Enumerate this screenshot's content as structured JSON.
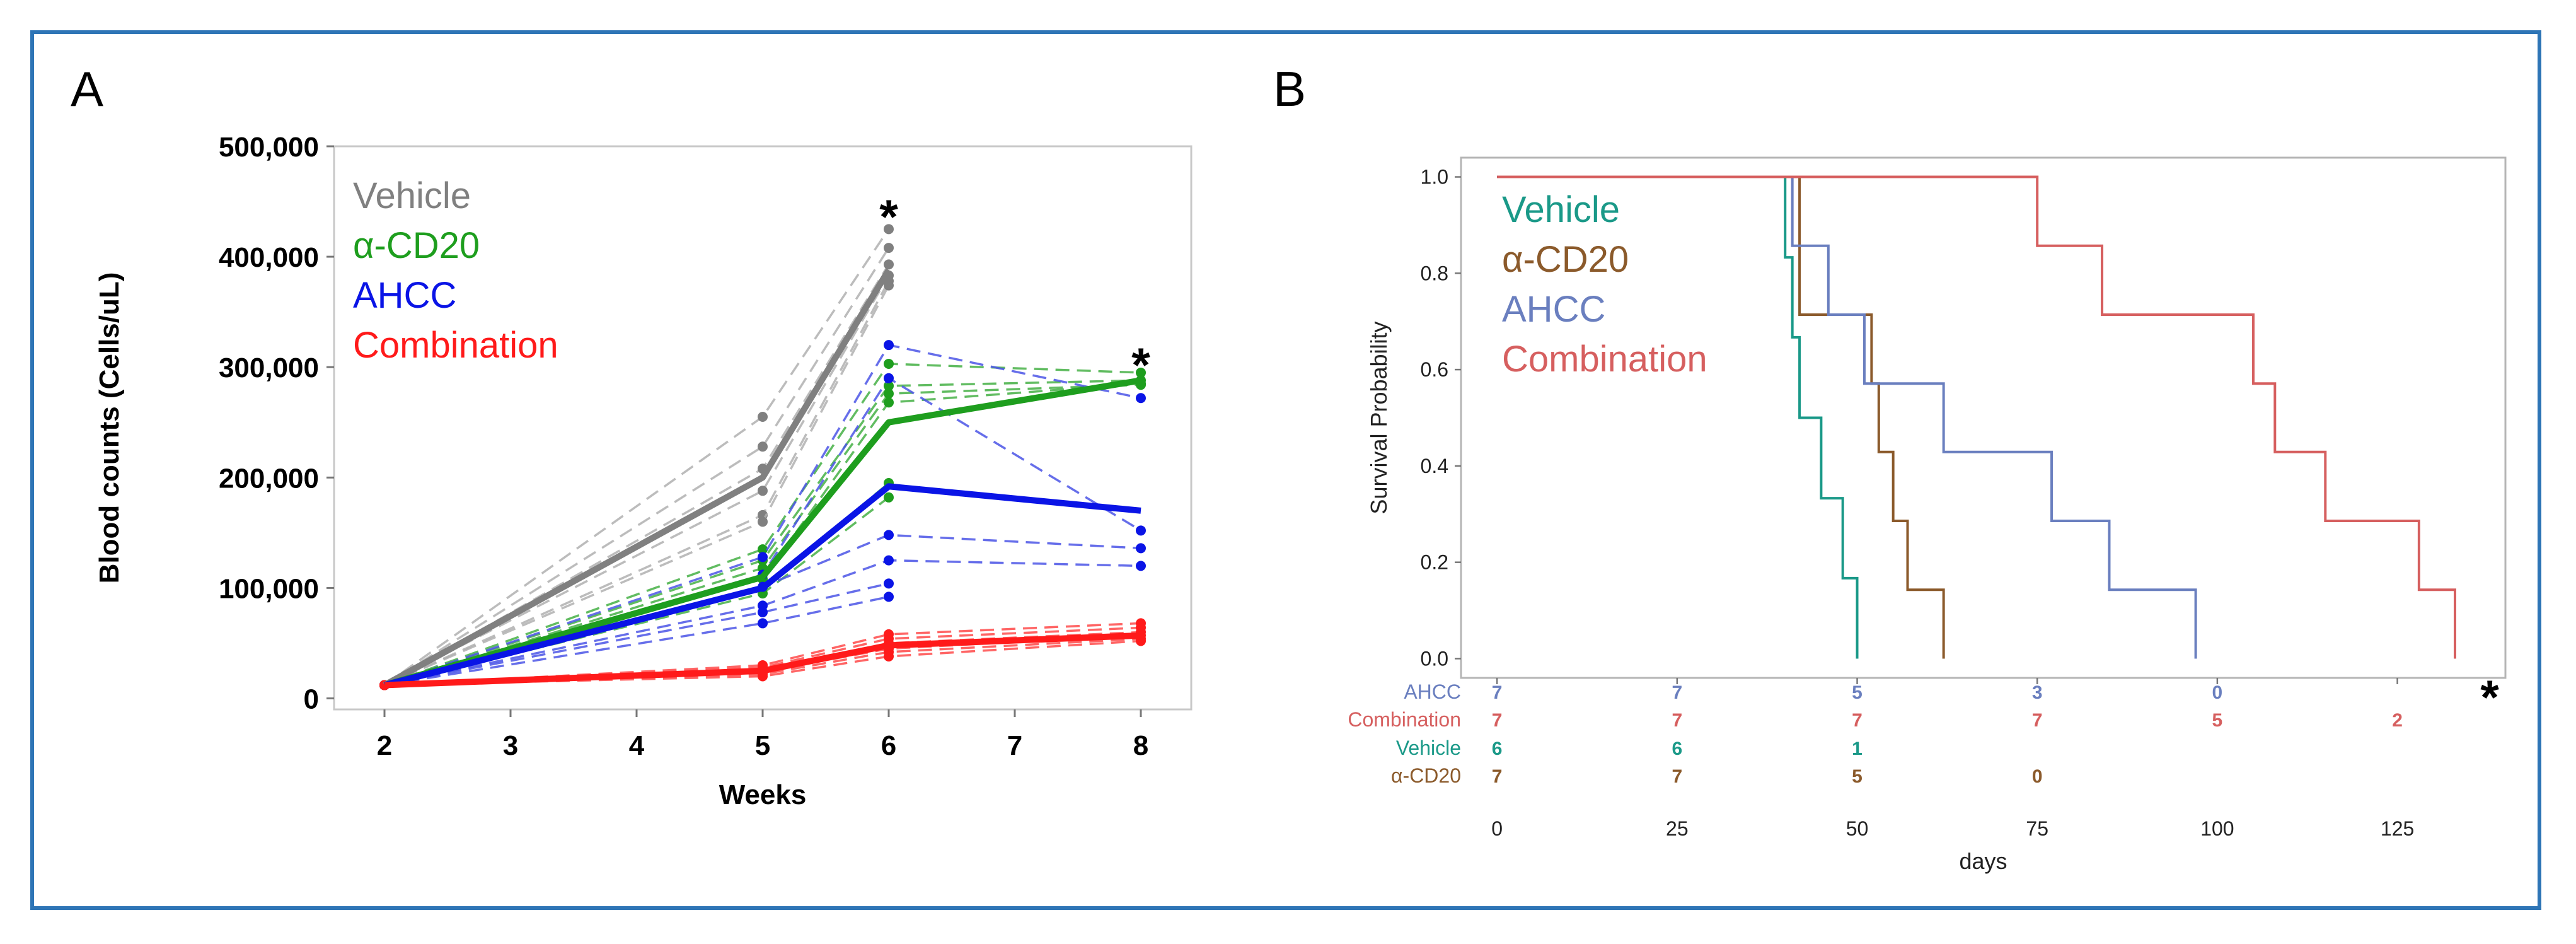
{
  "chart_data": [
    {
      "panel": "A",
      "type": "line",
      "title": "",
      "xlabel": "Weeks",
      "ylabel": "Blood counts (Cells/uL)",
      "x_ticks": [
        2,
        3,
        4,
        5,
        6,
        7,
        8
      ],
      "y_ticks": [
        0,
        100000,
        200000,
        300000,
        400000,
        500000
      ],
      "y_tick_labels": [
        "0",
        "100,000",
        "200,000",
        "300,000",
        "400,000",
        "500,000"
      ],
      "xlim": [
        1.6,
        8.4
      ],
      "ylim": [
        -10000,
        500000
      ],
      "legend": [
        "Vehicle",
        "α-CD20",
        "AHCC",
        "Combination"
      ],
      "legend_position": "top-left",
      "annotations": [
        "*",
        "*"
      ],
      "series": [
        {
          "name": "Vehicle",
          "color": "#808080",
          "individual_color": "#b0b0b0",
          "mean": {
            "x": [
              2,
              5,
              6
            ],
            "y": [
              12000,
              200000,
              388000
            ]
          },
          "individuals": [
            {
              "x": [
                2,
                5,
                6
              ],
              "y": [
                12000,
                255000,
                425000
              ]
            },
            {
              "x": [
                2,
                5,
                6
              ],
              "y": [
                12000,
                228000,
                408000
              ]
            },
            {
              "x": [
                2,
                5,
                6
              ],
              "y": [
                12000,
                208000,
                393000
              ]
            },
            {
              "x": [
                2,
                5,
                6
              ],
              "y": [
                12000,
                188000,
                383000
              ]
            },
            {
              "x": [
                2,
                5,
                6
              ],
              "y": [
                12000,
                166000,
                378000
              ]
            },
            {
              "x": [
                2,
                5,
                6
              ],
              "y": [
                12000,
                160000,
                374000
              ]
            }
          ]
        },
        {
          "name": "α-CD20",
          "color": "#1e9e1e",
          "individual_color": "#45b045",
          "mean": {
            "x": [
              2,
              5,
              6,
              8
            ],
            "y": [
              12000,
              110000,
              250000,
              288000
            ]
          },
          "individuals": [
            {
              "x": [
                2,
                5,
                6,
                8
              ],
              "y": [
                12000,
                135000,
                303000,
                295000
              ]
            },
            {
              "x": [
                2,
                5,
                6,
                8
              ],
              "y": [
                12000,
                125000,
                283000,
                288000
              ]
            },
            {
              "x": [
                2,
                5,
                6,
                8
              ],
              "y": [
                12000,
                118000,
                276000,
                284000
              ]
            },
            {
              "x": [
                2,
                5,
                6,
                8
              ],
              "y": [
                12000,
                108000,
                268000,
                285000
              ]
            },
            {
              "x": [
                2,
                5,
                6
              ],
              "y": [
                12000,
                100000,
                195000
              ]
            },
            {
              "x": [
                2,
                5,
                6
              ],
              "y": [
                12000,
                95000,
                182000
              ]
            }
          ]
        },
        {
          "name": "AHCC",
          "color": "#0a14e6",
          "individual_color": "#4b55e6",
          "mean": {
            "x": [
              2,
              5,
              6,
              8
            ],
            "y": [
              12000,
              100000,
              192000,
              170000
            ]
          },
          "individuals": [
            {
              "x": [
                2,
                5,
                6,
                8
              ],
              "y": [
                12000,
                128000,
                320000,
                272000
              ]
            },
            {
              "x": [
                2,
                5,
                6,
                8
              ],
              "y": [
                12000,
                112000,
                290000,
                152000
              ]
            },
            {
              "x": [
                2,
                5,
                6,
                8
              ],
              "y": [
                12000,
                101000,
                148000,
                136000
              ]
            },
            {
              "x": [
                2,
                5,
                6,
                8
              ],
              "y": [
                12000,
                84000,
                125000,
                120000
              ]
            },
            {
              "x": [
                2,
                5,
                6
              ],
              "y": [
                12000,
                78000,
                104000
              ]
            },
            {
              "x": [
                2,
                5,
                6
              ],
              "y": [
                12000,
                68000,
                92000
              ]
            }
          ]
        },
        {
          "name": "Combination",
          "color": "#ff1a1a",
          "individual_color": "#ff4a4a",
          "mean": {
            "x": [
              2,
              5,
              6,
              8
            ],
            "y": [
              12000,
              25000,
              48000,
              57000
            ]
          },
          "individuals": [
            {
              "x": [
                2,
                5,
                6,
                8
              ],
              "y": [
                12000,
                30000,
                58000,
                68000
              ]
            },
            {
              "x": [
                2,
                5,
                6,
                8
              ],
              "y": [
                12000,
                28000,
                54000,
                64000
              ]
            },
            {
              "x": [
                2,
                5,
                6,
                8
              ],
              "y": [
                12000,
                26000,
                50000,
                60000
              ]
            },
            {
              "x": [
                2,
                5,
                6,
                8
              ],
              "y": [
                12000,
                24000,
                45000,
                57000
              ]
            },
            {
              "x": [
                2,
                5,
                6,
                8
              ],
              "y": [
                12000,
                22000,
                42000,
                54000
              ]
            },
            {
              "x": [
                2,
                5,
                6,
                8
              ],
              "y": [
                12000,
                20000,
                38000,
                52000
              ]
            }
          ]
        }
      ]
    },
    {
      "panel": "B",
      "type": "line",
      "subtype": "kaplan-meier",
      "title": "",
      "xlabel": "days",
      "ylabel": "Survival Probability",
      "x_ticks": [
        0,
        25,
        50,
        75,
        100,
        125
      ],
      "y_ticks": [
        0.0,
        0.2,
        0.4,
        0.6,
        0.8,
        1.0
      ],
      "y_tick_labels": [
        "0.0",
        "0.2",
        "0.4",
        "0.6",
        "0.8",
        "1.0"
      ],
      "xlim": [
        -5,
        140
      ],
      "ylim": [
        -0.04,
        1.04
      ],
      "legend": [
        "Vehicle",
        "α-CD20",
        "AHCC",
        "Combination"
      ],
      "legend_position": "top-left",
      "annotations": [
        "*"
      ],
      "series": [
        {
          "name": "Vehicle",
          "color": "#1a9988",
          "steps": [
            [
              0,
              1.0
            ],
            [
              40,
              0.833
            ],
            [
              41,
              0.667
            ],
            [
              42,
              0.5
            ],
            [
              45,
              0.333
            ],
            [
              48,
              0.167
            ],
            [
              50,
              0.0
            ]
          ]
        },
        {
          "name": "α-CD20",
          "color": "#8b5a2b",
          "steps": [
            [
              0,
              1.0
            ],
            [
              42,
              0.714
            ],
            [
              52,
              0.571
            ],
            [
              53,
              0.429
            ],
            [
              55,
              0.286
            ],
            [
              57,
              0.143
            ],
            [
              62,
              0.0
            ]
          ]
        },
        {
          "name": "AHCC",
          "color": "#6a7fbf",
          "steps": [
            [
              0,
              1.0
            ],
            [
              41,
              0.857
            ],
            [
              46,
              0.714
            ],
            [
              51,
              0.571
            ],
            [
              62,
              0.429
            ],
            [
              77,
              0.286
            ],
            [
              85,
              0.143
            ],
            [
              97,
              0.0
            ]
          ]
        },
        {
          "name": "Combination",
          "color": "#d65f5f",
          "steps": [
            [
              0,
              1.0
            ],
            [
              75,
              0.857
            ],
            [
              84,
              0.714
            ],
            [
              105,
              0.571
            ],
            [
              108,
              0.429
            ],
            [
              115,
              0.286
            ],
            [
              128,
              0.143
            ],
            [
              133,
              0.0
            ]
          ]
        }
      ],
      "risk_table": {
        "times": [
          0,
          25,
          50,
          75,
          100,
          125
        ],
        "rows": [
          {
            "label": "AHCC",
            "color": "#6a7fbf",
            "values": [
              "7",
              "7",
              "5",
              "3",
              "0"
            ]
          },
          {
            "label": "Combination",
            "color": "#d65f5f",
            "values": [
              "7",
              "7",
              "7",
              "7",
              "5",
              "2"
            ]
          },
          {
            "label": "Vehicle",
            "color": "#1a9988",
            "values": [
              "6",
              "6",
              "1"
            ]
          },
          {
            "label": "α-CD20",
            "color": "#8b5a2b",
            "values": [
              "7",
              "7",
              "5",
              "0"
            ]
          }
        ]
      }
    }
  ],
  "panels": {
    "a_letter": "A",
    "b_letter": "B"
  }
}
